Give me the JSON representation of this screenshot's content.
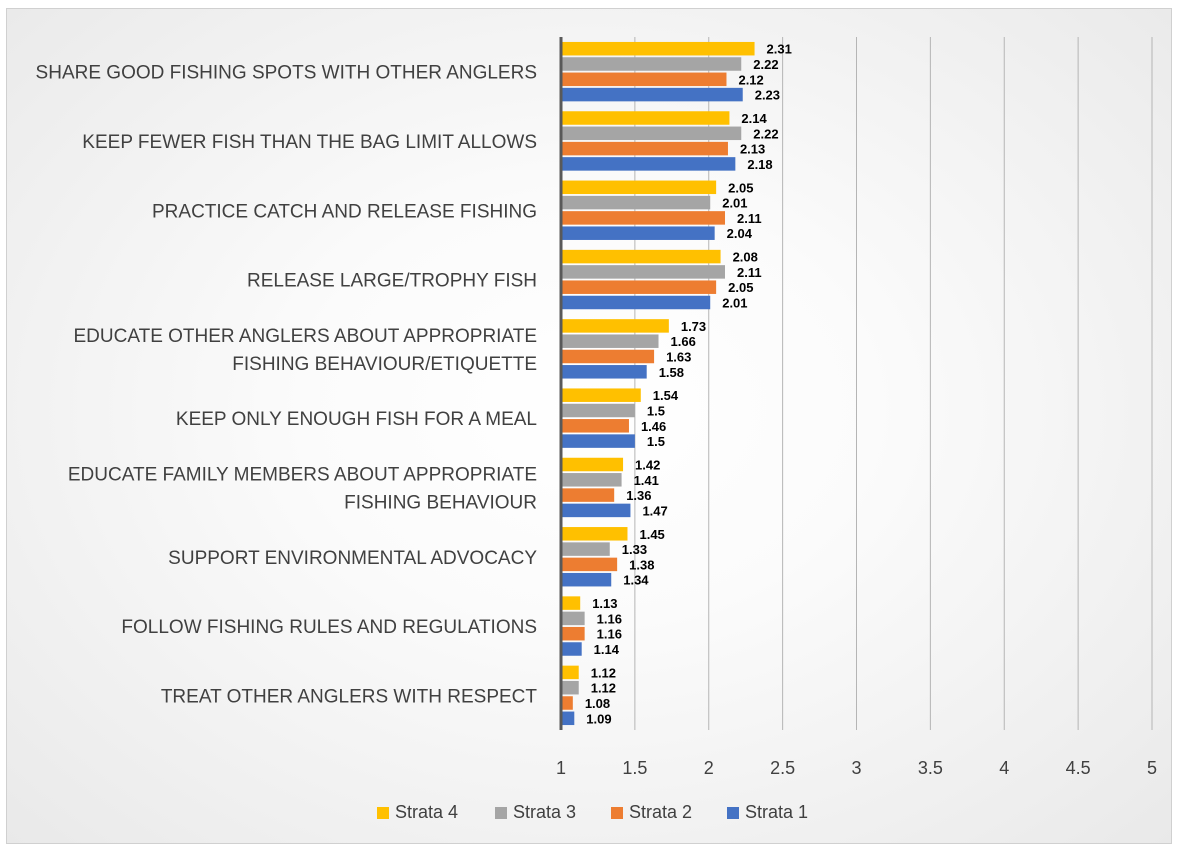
{
  "chart_data": {
    "type": "bar",
    "orientation": "horizontal",
    "categories": [
      [
        "SHARE GOOD FISHING SPOTS WITH OTHER ANGLERS"
      ],
      [
        "KEEP FEWER FISH THAN THE BAG LIMIT ALLOWS"
      ],
      [
        "PRACTICE CATCH AND RELEASE FISHING"
      ],
      [
        "RELEASE LARGE/TROPHY FISH"
      ],
      [
        "EDUCATE OTHER ANGLERS ABOUT APPROPRIATE",
        "FISHING BEHAVIOUR/ETIQUETTE"
      ],
      [
        "KEEP ONLY ENOUGH FISH FOR A MEAL"
      ],
      [
        "EDUCATE FAMILY MEMBERS ABOUT APPROPRIATE",
        "FISHING BEHAVIOUR"
      ],
      [
        "SUPPORT ENVIRONMENTAL ADVOCACY"
      ],
      [
        "FOLLOW FISHING RULES AND REGULATIONS"
      ],
      [
        "TREAT OTHER ANGLERS WITH RESPECT"
      ]
    ],
    "series": [
      {
        "name": "Strata 4",
        "color": "#FFC000",
        "values": [
          2.31,
          2.14,
          2.05,
          2.08,
          1.73,
          1.54,
          1.42,
          1.45,
          1.13,
          1.12
        ],
        "labels": [
          "2.31",
          "2.14",
          "2.05",
          "2.08",
          "1.73",
          "1.54",
          "1.42",
          "1.45",
          "1.13",
          "1.12"
        ]
      },
      {
        "name": "Strata 3",
        "color": "#A5A5A5",
        "values": [
          2.22,
          2.22,
          2.01,
          2.11,
          1.66,
          1.5,
          1.41,
          1.33,
          1.16,
          1.12
        ],
        "labels": [
          "2.22",
          "2.22",
          "2.01",
          "2.11",
          "1.66",
          "1.5",
          "1.41",
          "1.33",
          "1.16",
          "1.12"
        ]
      },
      {
        "name": "Strata 2",
        "color": "#ED7D31",
        "values": [
          2.12,
          2.13,
          2.11,
          2.05,
          1.63,
          1.46,
          1.36,
          1.38,
          1.16,
          1.08
        ],
        "labels": [
          "2.12",
          "2.13",
          "2.11",
          "2.05",
          "1.63",
          "1.46",
          "1.36",
          "1.38",
          "1.16",
          "1.08"
        ]
      },
      {
        "name": "Strata 1",
        "color": "#4472C4",
        "values": [
          2.23,
          2.18,
          2.04,
          2.01,
          1.58,
          1.5,
          1.47,
          1.34,
          1.14,
          1.09
        ],
        "labels": [
          "2.23",
          "2.18",
          "2.04",
          "2.01",
          "1.58",
          "1.5",
          "1.47",
          "1.34",
          "1.14",
          "1.09"
        ]
      }
    ],
    "xlim": [
      1,
      5
    ],
    "ticks": [
      "1",
      "1.5",
      "2",
      "2.5",
      "3",
      "3.5",
      "4",
      "4.5",
      "5"
    ],
    "tick_values": [
      1,
      1.5,
      2,
      2.5,
      3,
      3.5,
      4,
      4.5,
      5
    ],
    "grid": true,
    "legend_position": "bottom",
    "title": "",
    "xlabel": "",
    "ylabel": ""
  }
}
